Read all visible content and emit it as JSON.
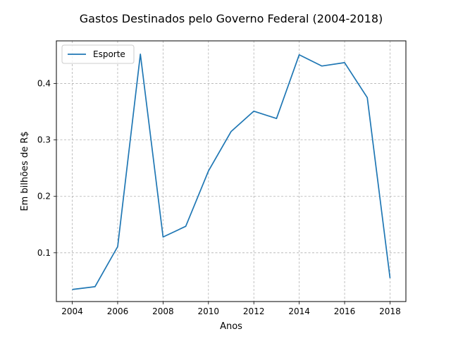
{
  "chart_data": {
    "type": "line",
    "title": "Gastos Destinados pelo Governo Federal (2004-2018)",
    "xlabel": "Anos",
    "ylabel": "Em bilhões de R$",
    "xlim": [
      2003.3,
      2018.7
    ],
    "ylim": [
      0.0136,
      0.4756
    ],
    "x_ticks": [
      2004,
      2006,
      2008,
      2010,
      2012,
      2014,
      2016,
      2018
    ],
    "y_ticks": [
      0.1,
      0.2,
      0.3,
      0.4
    ],
    "x_tick_labels": [
      "2004",
      "2006",
      "2008",
      "2010",
      "2012",
      "2014",
      "2016",
      "2018"
    ],
    "y_tick_labels": [
      "0.1",
      "0.2",
      "0.3",
      "0.4"
    ],
    "grid": true,
    "legend_position": "top-left",
    "series": [
      {
        "name": "Esporte",
        "color": "#1f77b4",
        "x": [
          2004,
          2005,
          2006,
          2007,
          2008,
          2009,
          2010,
          2011,
          2012,
          2013,
          2014,
          2015,
          2016,
          2017,
          2018
        ],
        "values": [
          0.035,
          0.04,
          0.111,
          0.452,
          0.128,
          0.147,
          0.245,
          0.315,
          0.351,
          0.338,
          0.451,
          0.431,
          0.437,
          0.375,
          0.055
        ]
      }
    ]
  }
}
